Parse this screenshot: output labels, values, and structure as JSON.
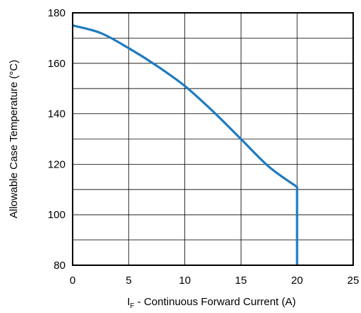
{
  "chart_data": {
    "type": "line",
    "title": "",
    "xlabel": {
      "prefix": "I",
      "subscript": "F",
      "rest": " - Continuous Forward Current (A)"
    },
    "ylabel": "Allowable Case Temperature (°C)",
    "xlim": [
      0,
      25
    ],
    "ylim": [
      80,
      180
    ],
    "x_ticks": [
      0,
      5,
      10,
      15,
      20,
      25
    ],
    "y_ticks": [
      80,
      100,
      120,
      140,
      160,
      180
    ],
    "x_tick_labels": [
      "0",
      "5",
      "10",
      "15",
      "20",
      "25"
    ],
    "y_tick_labels": [
      "80",
      "100",
      "120",
      "140",
      "160",
      "180"
    ],
    "x_grid": [
      0,
      5,
      10,
      15,
      20,
      25
    ],
    "y_grid": [
      80,
      90,
      100,
      110,
      120,
      130,
      140,
      150,
      160,
      170,
      180
    ],
    "grid": true,
    "series": [
      {
        "color": "#1f7bbf",
        "points": [
          [
            0,
            175
          ],
          [
            2.5,
            172
          ],
          [
            5,
            166
          ],
          [
            7.5,
            159
          ],
          [
            10,
            151
          ],
          [
            12.5,
            141
          ],
          [
            15,
            130
          ],
          [
            17.5,
            119
          ],
          [
            20,
            111
          ],
          [
            20,
            80
          ]
        ]
      }
    ]
  }
}
